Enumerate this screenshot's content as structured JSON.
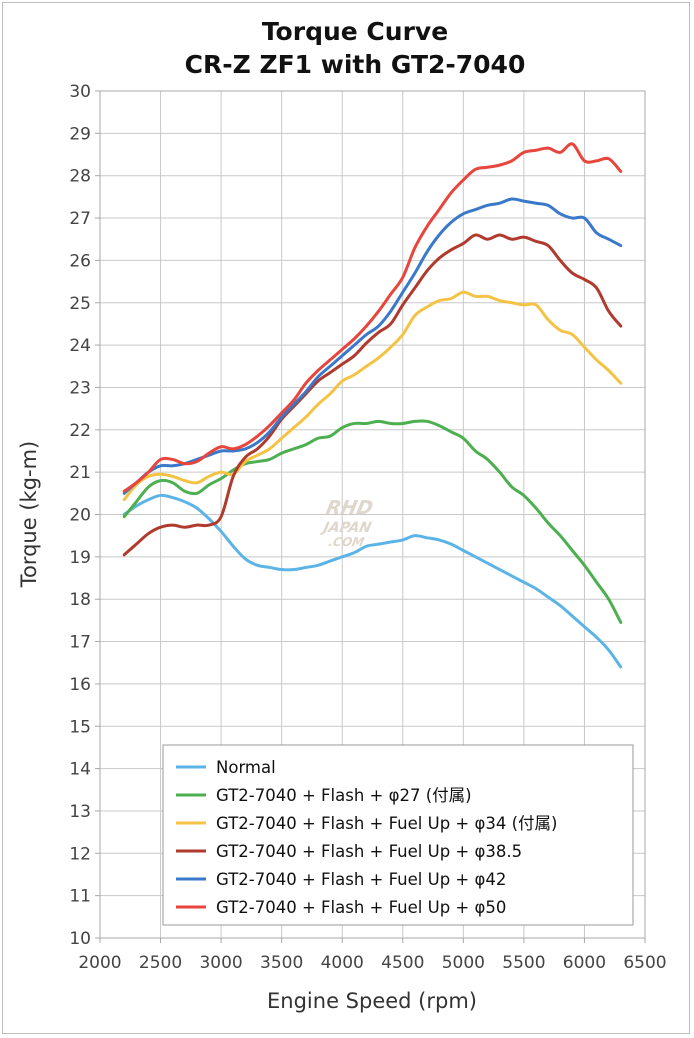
{
  "chart_data": {
    "type": "line",
    "title": "Torque Curve",
    "subtitle": "CR-Z ZF1 with GT2-7040",
    "xlabel": "Engine Speed (rpm)",
    "ylabel": "Torque (kg-m)",
    "xlim": [
      2000,
      6500
    ],
    "ylim": [
      10,
      30
    ],
    "xticks": [
      2000,
      2500,
      3000,
      3500,
      4000,
      4500,
      5000,
      5500,
      6000,
      6500
    ],
    "yticks": [
      10,
      11,
      12,
      13,
      14,
      15,
      16,
      17,
      18,
      19,
      20,
      21,
      22,
      23,
      24,
      25,
      26,
      27,
      28,
      29,
      30
    ],
    "grid": true,
    "legend_position": "bottom-right",
    "watermark": "RHD JAPAN .COM",
    "series": [
      {
        "name": "Normal",
        "color": "#5bb4e5",
        "x": [
          2200,
          2300,
          2400,
          2500,
          2600,
          2700,
          2800,
          2900,
          3000,
          3100,
          3200,
          3300,
          3400,
          3500,
          3600,
          3700,
          3800,
          3900,
          4000,
          4100,
          4200,
          4300,
          4400,
          4500,
          4600,
          4700,
          4800,
          4900,
          5000,
          5100,
          5200,
          5300,
          5400,
          5500,
          5600,
          5700,
          5800,
          5900,
          6000,
          6100,
          6200,
          6300
        ],
        "values": [
          20.0,
          20.2,
          20.35,
          20.45,
          20.4,
          20.3,
          20.15,
          19.9,
          19.6,
          19.25,
          18.95,
          18.8,
          18.75,
          18.7,
          18.7,
          18.75,
          18.8,
          18.9,
          19.0,
          19.1,
          19.25,
          19.3,
          19.35,
          19.4,
          19.5,
          19.45,
          19.4,
          19.3,
          19.15,
          19.0,
          18.85,
          18.7,
          18.55,
          18.4,
          18.25,
          18.05,
          17.85,
          17.6,
          17.35,
          17.1,
          16.8,
          16.4
        ]
      },
      {
        "name": "GT2-7040 + Flash + φ27 (付属)",
        "color": "#4caf50",
        "x": [
          2200,
          2300,
          2400,
          2500,
          2600,
          2700,
          2800,
          2900,
          3000,
          3100,
          3200,
          3300,
          3400,
          3500,
          3600,
          3700,
          3800,
          3900,
          4000,
          4100,
          4200,
          4300,
          4400,
          4500,
          4600,
          4700,
          4800,
          4900,
          5000,
          5100,
          5200,
          5300,
          5400,
          5500,
          5600,
          5700,
          5800,
          5900,
          6000,
          6100,
          6200,
          6300
        ],
        "values": [
          19.95,
          20.3,
          20.65,
          20.8,
          20.75,
          20.55,
          20.5,
          20.7,
          20.85,
          21.05,
          21.2,
          21.25,
          21.3,
          21.45,
          21.55,
          21.65,
          21.8,
          21.85,
          22.05,
          22.15,
          22.15,
          22.2,
          22.15,
          22.15,
          22.2,
          22.2,
          22.1,
          21.95,
          21.8,
          21.5,
          21.3,
          21.0,
          20.65,
          20.45,
          20.15,
          19.8,
          19.5,
          19.15,
          18.8,
          18.4,
          18.0,
          17.45
        ]
      },
      {
        "name": "GT2-7040 + Flash + Fuel Up + φ34 (付属)",
        "color": "#f4c343",
        "x": [
          2200,
          2300,
          2400,
          2500,
          2600,
          2700,
          2800,
          2900,
          3000,
          3100,
          3200,
          3300,
          3400,
          3500,
          3600,
          3700,
          3800,
          3900,
          4000,
          4100,
          4200,
          4300,
          4400,
          4500,
          4600,
          4700,
          4800,
          4900,
          5000,
          5100,
          5200,
          5300,
          5400,
          5500,
          5600,
          5700,
          5800,
          5900,
          6000,
          6100,
          6200,
          6300
        ],
        "values": [
          20.35,
          20.7,
          20.9,
          20.95,
          20.9,
          20.8,
          20.75,
          20.9,
          21.0,
          20.95,
          21.25,
          21.4,
          21.55,
          21.8,
          22.05,
          22.3,
          22.6,
          22.85,
          23.15,
          23.3,
          23.5,
          23.7,
          23.95,
          24.25,
          24.7,
          24.9,
          25.05,
          25.1,
          25.25,
          25.15,
          25.15,
          25.05,
          25.0,
          24.95,
          24.95,
          24.6,
          24.35,
          24.25,
          23.95,
          23.65,
          23.4,
          23.1
        ]
      },
      {
        "name": "GT2-7040 + Flash + Fuel Up + φ38.5",
        "color": "#b03a2e",
        "x": [
          2200,
          2300,
          2400,
          2500,
          2600,
          2700,
          2800,
          2900,
          3000,
          3100,
          3200,
          3300,
          3400,
          3500,
          3600,
          3700,
          3800,
          3900,
          4000,
          4100,
          4200,
          4300,
          4400,
          4500,
          4600,
          4700,
          4800,
          4900,
          5000,
          5100,
          5200,
          5300,
          5400,
          5500,
          5600,
          5700,
          5800,
          5900,
          6000,
          6100,
          6200,
          6300
        ],
        "values": [
          19.05,
          19.3,
          19.55,
          19.7,
          19.75,
          19.7,
          19.75,
          19.75,
          19.95,
          20.9,
          21.35,
          21.55,
          21.85,
          22.25,
          22.55,
          22.85,
          23.15,
          23.35,
          23.55,
          23.75,
          24.05,
          24.3,
          24.5,
          24.95,
          25.35,
          25.75,
          26.05,
          26.25,
          26.4,
          26.6,
          26.5,
          26.6,
          26.5,
          26.55,
          26.45,
          26.35,
          26.0,
          25.7,
          25.55,
          25.35,
          24.8,
          24.45
        ]
      },
      {
        "name": "GT2-7040 + Flash + Fuel Up + φ42",
        "color": "#3a78c9",
        "x": [
          2200,
          2300,
          2400,
          2500,
          2600,
          2700,
          2800,
          2900,
          3000,
          3100,
          3200,
          3300,
          3400,
          3500,
          3600,
          3700,
          3800,
          3900,
          4000,
          4100,
          4200,
          4300,
          4400,
          4500,
          4600,
          4700,
          4800,
          4900,
          5000,
          5100,
          5200,
          5300,
          5400,
          5500,
          5600,
          5700,
          5800,
          5900,
          6000,
          6100,
          6200,
          6300
        ],
        "values": [
          20.5,
          20.75,
          21.0,
          21.15,
          21.15,
          21.2,
          21.3,
          21.4,
          21.5,
          21.5,
          21.55,
          21.7,
          21.95,
          22.3,
          22.6,
          22.9,
          23.25,
          23.5,
          23.75,
          24.0,
          24.25,
          24.45,
          24.8,
          25.25,
          25.7,
          26.2,
          26.6,
          26.9,
          27.1,
          27.2,
          27.3,
          27.35,
          27.45,
          27.4,
          27.35,
          27.3,
          27.1,
          27.0,
          27.0,
          26.65,
          26.5,
          26.35
        ]
      },
      {
        "name": "GT2-7040 + Flash + Fuel Up + φ50",
        "color": "#e8453c",
        "x": [
          2200,
          2300,
          2400,
          2500,
          2600,
          2700,
          2800,
          2900,
          3000,
          3100,
          3200,
          3300,
          3400,
          3500,
          3600,
          3700,
          3800,
          3900,
          4000,
          4100,
          4200,
          4300,
          4400,
          4500,
          4600,
          4700,
          4800,
          4900,
          5000,
          5100,
          5200,
          5300,
          5400,
          5500,
          5600,
          5700,
          5800,
          5900,
          6000,
          6100,
          6200,
          6300
        ],
        "values": [
          20.55,
          20.75,
          21.0,
          21.3,
          21.3,
          21.2,
          21.25,
          21.45,
          21.6,
          21.55,
          21.65,
          21.85,
          22.1,
          22.4,
          22.7,
          23.1,
          23.4,
          23.65,
          23.9,
          24.15,
          24.45,
          24.8,
          25.2,
          25.6,
          26.3,
          26.8,
          27.2,
          27.6,
          27.9,
          28.15,
          28.2,
          28.25,
          28.35,
          28.55,
          28.6,
          28.65,
          28.55,
          28.75,
          28.35,
          28.35,
          28.4,
          28.1
        ]
      }
    ]
  }
}
